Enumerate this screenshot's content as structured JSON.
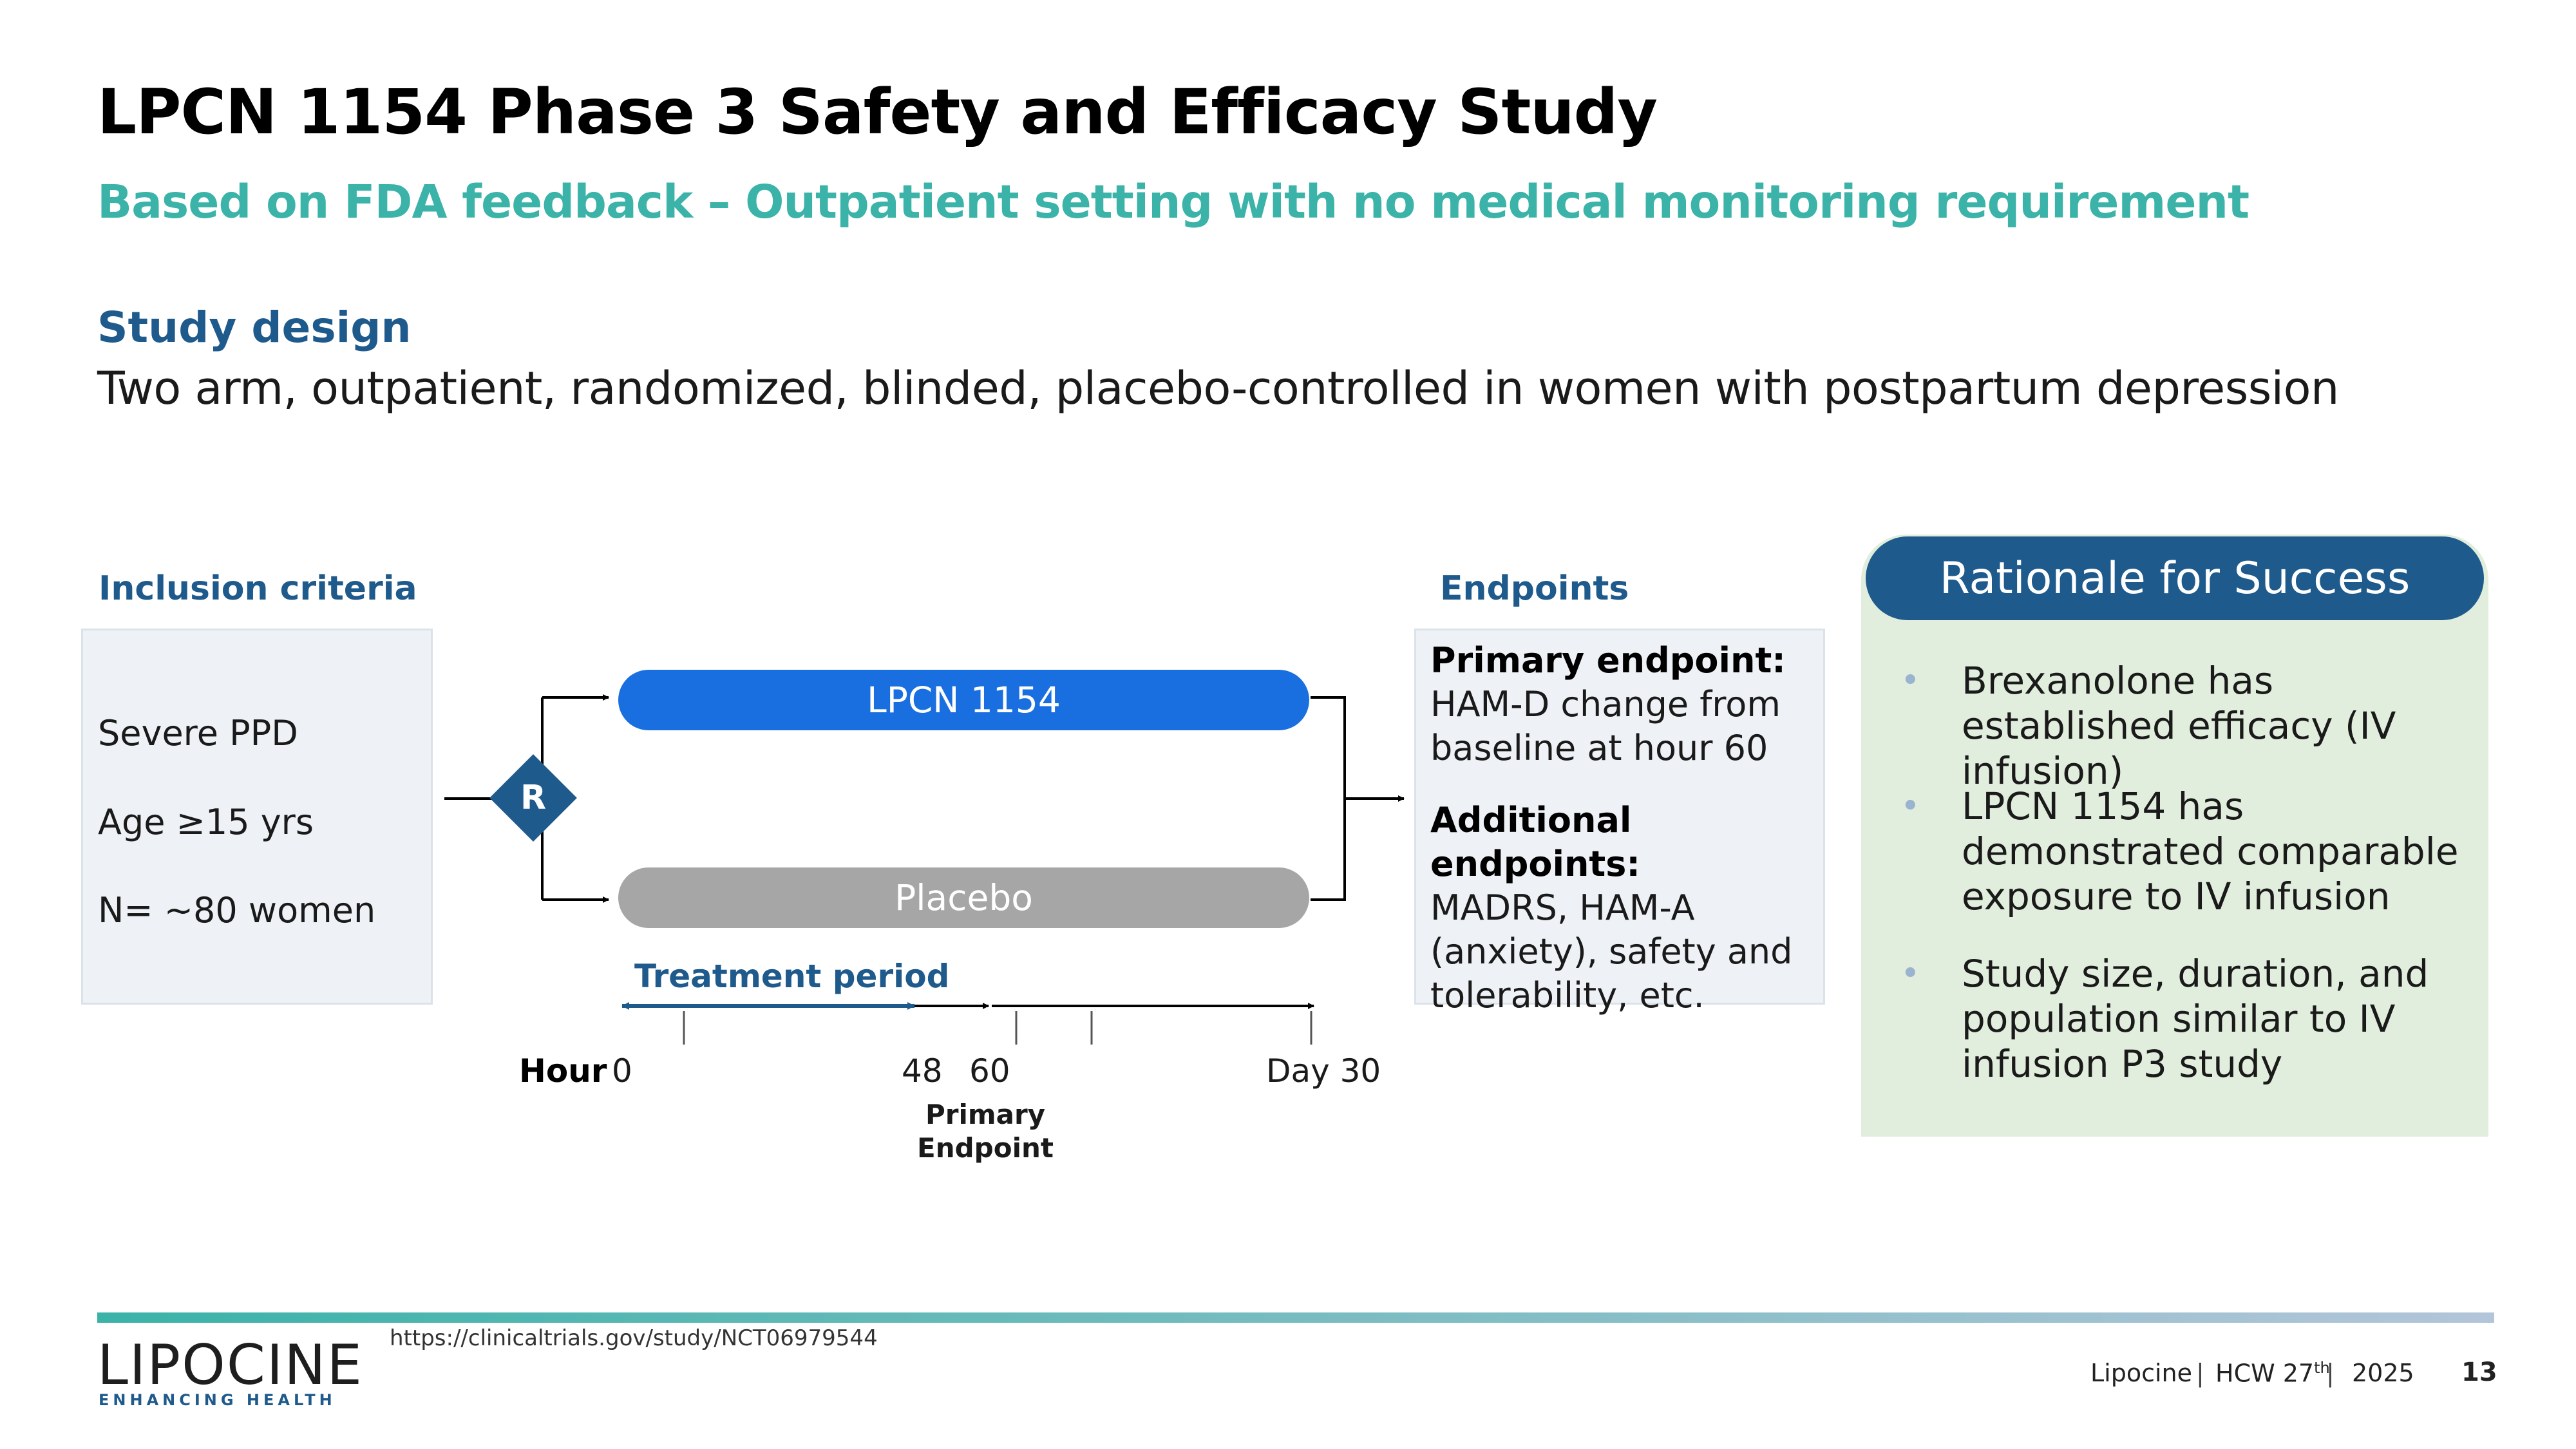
{
  "title": "LPCN 1154 Phase 3 Safety and Efficacy Study",
  "subtitle": "Based on FDA feedback – Outpatient setting with no medical monitoring requirement",
  "study_design": {
    "heading": "Study design",
    "text": "Two arm, outpatient, randomized, blinded, placebo-controlled in women with postpartum depression"
  },
  "inclusion": {
    "heading": "Inclusion criteria",
    "items": [
      "Severe PPD",
      "Age ≥15 yrs",
      "N= ~80 women"
    ]
  },
  "randomization_label": "R",
  "arms": {
    "active": "LPCN 1154",
    "placebo": "Placebo"
  },
  "endpoints": {
    "heading": "Endpoints",
    "primary_title": "Primary endpoint:",
    "primary_text": "HAM-D change from baseline at hour 60",
    "additional_title": "Additional endpoints:",
    "additional_text": "MADRS, HAM-A (anxiety), safety and tolerability, etc."
  },
  "timeline": {
    "treatment_period": "Treatment period",
    "axis_label": "Hour",
    "ticks": [
      "0",
      "48",
      "60",
      "Day 30"
    ],
    "primary_endpoint_line1": "Primary",
    "primary_endpoint_line2": "Endpoint"
  },
  "rationale": {
    "header": "Rationale for Success",
    "bullet_symbol": "•",
    "bullets": [
      "Brexanolone has established efficacy  (IV infusion)",
      "LPCN 1154 has demonstrated comparable exposure to IV infusion",
      "Study size, duration, and population similar to IV infusion P3 study"
    ]
  },
  "footer": {
    "url": "https://clinicaltrials.gov/study/NCT06979544",
    "company": "Lipocine",
    "event_prefix": "HCW 27",
    "event_sup": "th",
    "year": "2025",
    "page_number": "13",
    "logo_text": "LIPOCINE",
    "logo_tagline": "ENHANCING HEALTH"
  },
  "colors": {
    "title": "#000000",
    "subtitle_teal": "#3bb3a8",
    "heading_blue": "#1f5a8c",
    "active_arm": "#1a6fe0",
    "placebo_arm": "#a6a6a6",
    "rationale_bg": "#e2eedd",
    "box_bg": "#eef2f6"
  }
}
